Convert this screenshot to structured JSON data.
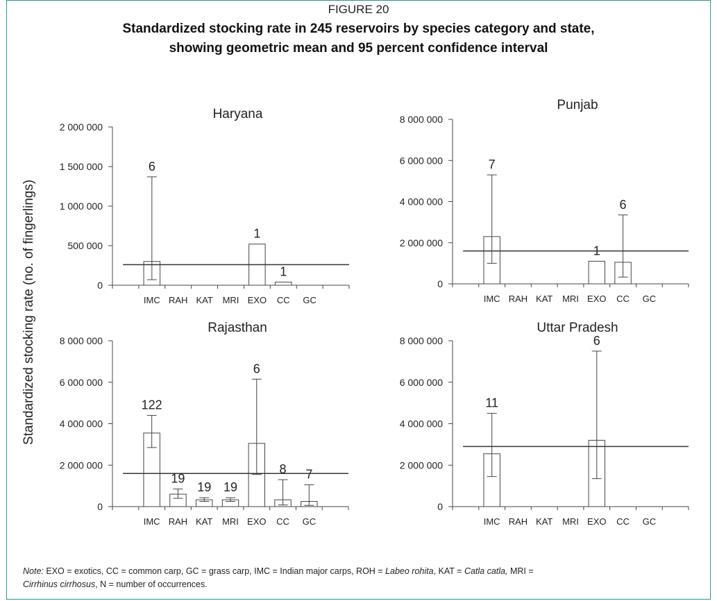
{
  "figure_label": "FIGURE 20",
  "figure_title_line1": "Standardized stocking rate in 245 reservoirs by species category and state,",
  "figure_title_line2": "showing geometric mean and 95 percent confidence interval",
  "note": {
    "prefix": "Note:",
    "part1": " EXO = exotics, CC = common carp, GC = grass carp, IMC = Indian major carps, ROH = ",
    "roh": "Labeo rohita",
    "part2": ", KAT = ",
    "kat": "Catla catla,",
    "part3": " MRI =",
    "mri": "Cirrhinus cirrhosus",
    "part4": ", N = number of occurrences."
  },
  "chart_data": [
    {
      "type": "bar",
      "title": "Haryana",
      "ylabel": "Standardized stocking rate (no.  of fingerlings)",
      "categories": [
        "IMC",
        "RAH",
        "KAT",
        "MRI",
        "EXO",
        "CC",
        "GC"
      ],
      "values": [
        300000,
        null,
        null,
        null,
        520000,
        40000,
        null
      ],
      "ci_low": [
        70000,
        null,
        null,
        null,
        null,
        null,
        null
      ],
      "ci_high": [
        1370000,
        null,
        null,
        null,
        null,
        null,
        null
      ],
      "n_labels": [
        "6",
        "",
        "",
        "",
        "1",
        "1",
        ""
      ],
      "mean_line": 260000,
      "ylim": [
        0,
        2000000
      ],
      "yticks": [
        0,
        500000,
        1000000,
        1500000,
        2000000
      ],
      "ytick_labels": [
        "0",
        "500 000",
        "1 000 000",
        "1 500 000",
        "2 000 000"
      ]
    },
    {
      "type": "bar",
      "title": "Punjab",
      "categories": [
        "IMC",
        "RAH",
        "KAT",
        "MRI",
        "EXO",
        "CC",
        "GC"
      ],
      "values": [
        2300000,
        null,
        null,
        null,
        1100000,
        1050000,
        null
      ],
      "ci_low": [
        1000000,
        null,
        null,
        null,
        null,
        330000,
        null
      ],
      "ci_high": [
        5300000,
        null,
        null,
        null,
        null,
        3350000,
        null
      ],
      "n_labels": [
        "7",
        "",
        "",
        "",
        "1",
        "6",
        ""
      ],
      "mean_line": 1600000,
      "ylim": [
        0,
        8000000
      ],
      "yticks": [
        0,
        2000000,
        4000000,
        6000000,
        8000000
      ],
      "ytick_labels": [
        "0",
        "2 000 000",
        "4 000 000",
        "6 000 000",
        "8 000 000"
      ]
    },
    {
      "type": "bar",
      "title": "Rajasthan",
      "categories": [
        "IMC",
        "RAH",
        "KAT",
        "MRI",
        "EXO",
        "CC",
        "GC"
      ],
      "values": [
        3550000,
        600000,
        330000,
        330000,
        3050000,
        330000,
        250000
      ],
      "ci_low": [
        2850000,
        400000,
        250000,
        250000,
        1550000,
        80000,
        60000
      ],
      "ci_high": [
        4400000,
        850000,
        430000,
        430000,
        6150000,
        1300000,
        1050000
      ],
      "n_labels": [
        "122",
        "19",
        "19",
        "19",
        "6",
        "8",
        "7"
      ],
      "mean_line": 1600000,
      "ylim": [
        0,
        8000000
      ],
      "yticks": [
        0,
        2000000,
        4000000,
        6000000,
        8000000
      ],
      "ytick_labels": [
        "0",
        "2 000 000",
        "4 000 000",
        "6 000 000",
        "8 000 000"
      ]
    },
    {
      "type": "bar",
      "title": "Uttar Pradesh",
      "categories": [
        "IMC",
        "RAH",
        "KAT",
        "MRI",
        "EXO",
        "CC",
        "GC"
      ],
      "values": [
        2550000,
        null,
        null,
        null,
        3200000,
        null,
        null
      ],
      "ci_low": [
        1450000,
        null,
        null,
        null,
        1350000,
        null,
        null
      ],
      "ci_high": [
        4500000,
        null,
        null,
        null,
        7500000,
        null,
        null
      ],
      "n_labels": [
        "11",
        "",
        "",
        "",
        "6",
        "",
        ""
      ],
      "mean_line": 2900000,
      "ylim": [
        0,
        8000000
      ],
      "yticks": [
        0,
        2000000,
        4000000,
        6000000,
        8000000
      ],
      "ytick_labels": [
        "0",
        "2 000 000",
        "4 000 000",
        "6 000 000",
        "8 000 000"
      ]
    }
  ]
}
